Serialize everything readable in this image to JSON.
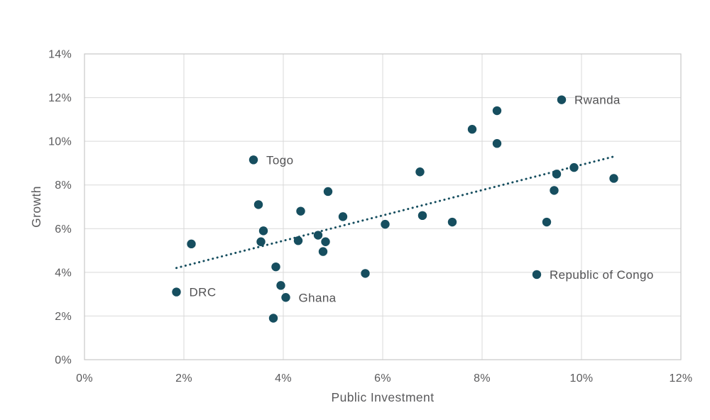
{
  "chart_data": {
    "type": "scatter",
    "title": "",
    "xlabel": "Public Investment",
    "ylabel": "Growth",
    "xlim": [
      0,
      12
    ],
    "ylim": [
      0,
      14
    ],
    "grid": true,
    "legend": "none",
    "colors": {
      "marker": "#164E5F",
      "trend": "#164E5F",
      "grid": "#D9D9D9",
      "border": "#C7C7C7",
      "tick_text": "#5A5A5C",
      "label_text": "#525254"
    },
    "x_ticks": [
      {
        "value": 0,
        "label": "0%"
      },
      {
        "value": 2,
        "label": "2%"
      },
      {
        "value": 4,
        "label": "4%"
      },
      {
        "value": 6,
        "label": "6%"
      },
      {
        "value": 8,
        "label": "8%"
      },
      {
        "value": 10,
        "label": "10%"
      },
      {
        "value": 12,
        "label": "12%"
      }
    ],
    "y_ticks": [
      {
        "value": 0,
        "label": "0%"
      },
      {
        "value": 2,
        "label": "2%"
      },
      {
        "value": 4,
        "label": "4%"
      },
      {
        "value": 6,
        "label": "6%"
      },
      {
        "value": 8,
        "label": "8%"
      },
      {
        "value": 10,
        "label": "10%"
      },
      {
        "value": 12,
        "label": "12%"
      },
      {
        "value": 14,
        "label": "14%"
      }
    ],
    "points": [
      {
        "x": 1.85,
        "y": 3.1,
        "label": "DRC"
      },
      {
        "x": 2.15,
        "y": 5.3
      },
      {
        "x": 3.4,
        "y": 9.15,
        "label": "Togo"
      },
      {
        "x": 3.5,
        "y": 7.1
      },
      {
        "x": 3.55,
        "y": 5.4
      },
      {
        "x": 3.6,
        "y": 5.9
      },
      {
        "x": 3.8,
        "y": 1.9
      },
      {
        "x": 3.85,
        "y": 4.25
      },
      {
        "x": 3.95,
        "y": 3.4
      },
      {
        "x": 4.05,
        "y": 2.85,
        "label": "Ghana"
      },
      {
        "x": 4.3,
        "y": 5.45
      },
      {
        "x": 4.35,
        "y": 6.8
      },
      {
        "x": 4.7,
        "y": 5.7
      },
      {
        "x": 4.8,
        "y": 4.95
      },
      {
        "x": 4.85,
        "y": 5.4
      },
      {
        "x": 4.9,
        "y": 7.7
      },
      {
        "x": 5.2,
        "y": 6.55
      },
      {
        "x": 5.65,
        "y": 3.95
      },
      {
        "x": 6.05,
        "y": 6.2
      },
      {
        "x": 6.75,
        "y": 8.6
      },
      {
        "x": 6.8,
        "y": 6.6
      },
      {
        "x": 7.4,
        "y": 6.3
      },
      {
        "x": 7.8,
        "y": 10.55
      },
      {
        "x": 8.3,
        "y": 11.4
      },
      {
        "x": 8.3,
        "y": 9.9
      },
      {
        "x": 9.1,
        "y": 3.9,
        "label": "Republic of Congo"
      },
      {
        "x": 9.3,
        "y": 6.3
      },
      {
        "x": 9.45,
        "y": 7.75
      },
      {
        "x": 9.5,
        "y": 8.5
      },
      {
        "x": 9.6,
        "y": 11.9,
        "label": "Rwanda"
      },
      {
        "x": 9.85,
        "y": 8.8
      },
      {
        "x": 10.65,
        "y": 8.3
      }
    ],
    "trendline": {
      "style": "dotted",
      "x1": 1.85,
      "y1": 4.2,
      "x2": 10.65,
      "y2": 9.3
    }
  }
}
